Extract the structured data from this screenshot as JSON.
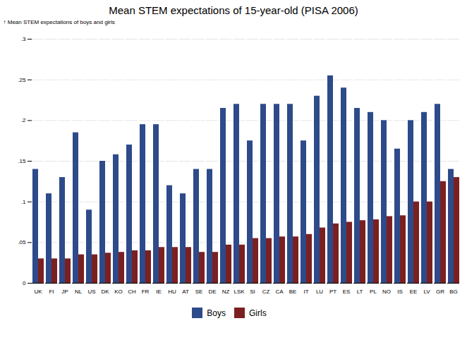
{
  "chart_data": {
    "type": "bar",
    "title": "Mean STEM expectations of 15-year-old (PISA 2006)",
    "ylabel": "Mean STEM expectations of boys and girls",
    "categories": [
      "UK",
      "FI",
      "JP",
      "NL",
      "US",
      "DK",
      "KO",
      "CH",
      "FR",
      "IE",
      "HU",
      "AT",
      "SE",
      "DE",
      "NZ",
      "LSK",
      "SI",
      "CZ",
      "CA",
      "BE",
      "IT",
      "LU",
      "PT",
      "ES",
      "LT",
      "PL",
      "NO",
      "IS",
      "EE",
      "LV",
      "GR",
      "BG"
    ],
    "series": [
      {
        "name": "Boys",
        "color": "#2d4a8a",
        "values": [
          0.14,
          0.11,
          0.13,
          0.185,
          0.09,
          0.15,
          0.158,
          0.17,
          0.195,
          0.195,
          0.12,
          0.11,
          0.14,
          0.14,
          0.215,
          0.22,
          0.175,
          0.22,
          0.22,
          0.22,
          0.175,
          0.23,
          0.255,
          0.24,
          0.215,
          0.21,
          0.2,
          0.165,
          0.2,
          0.21,
          0.22,
          0.14
        ]
      },
      {
        "name": "Girls",
        "color": "#7b2020",
        "values": [
          0.03,
          0.03,
          0.03,
          0.035,
          0.035,
          0.037,
          0.038,
          0.04,
          0.04,
          0.044,
          0.044,
          0.044,
          0.038,
          0.038,
          0.047,
          0.047,
          0.055,
          0.055,
          0.057,
          0.057,
          0.06,
          0.068,
          0.073,
          0.075,
          0.077,
          0.078,
          0.082,
          0.083,
          0.1,
          0.1,
          0.125,
          0.13
        ]
      }
    ],
    "ylim": [
      0,
      0.3
    ],
    "yticks": [
      0,
      {
        "value": 0.05,
        "label": ".05"
      },
      {
        "value": 0.1,
        "label": ".1"
      },
      {
        "value": 0.15,
        "label": ".15"
      },
      {
        "value": 0.2,
        "label": ".2"
      },
      {
        "value": 0.25,
        "label": ".25"
      },
      {
        "value": 0.3,
        "label": ".3"
      }
    ],
    "grid": true,
    "legend": "bottom"
  }
}
